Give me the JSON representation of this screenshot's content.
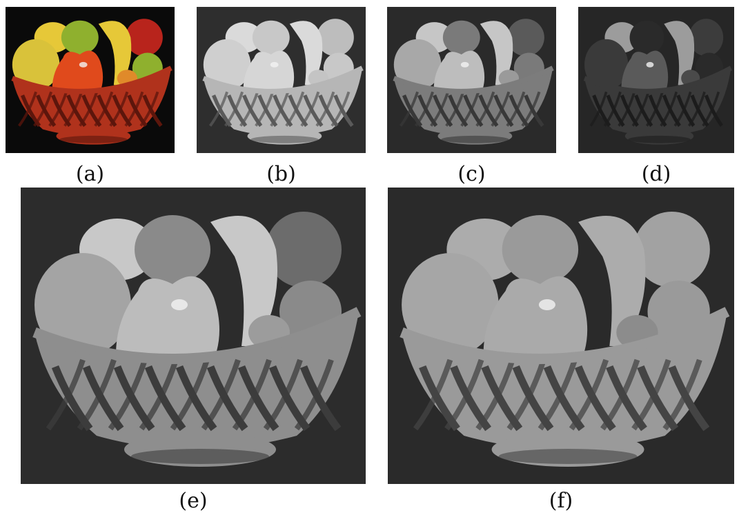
{
  "figure": {
    "panels": [
      {
        "id": "a",
        "caption": "(a)",
        "rendering": "color",
        "background": "#0a0a0a",
        "fruit_colors": [
          "#d9c23a",
          "#e04a1c",
          "#8fb02e",
          "#e6c838",
          "#b8241c",
          "#e08a2a"
        ],
        "basket_color": "#b0321c",
        "basket_shadow": "#5c160c"
      },
      {
        "id": "b",
        "caption": "(b)",
        "rendering": "grayscale",
        "background": "#2e2e2e",
        "fruit_colors": [
          "#cfcfcf",
          "#d6d6d6",
          "#c8c8c8",
          "#dadada",
          "#bdbdbd",
          "#c4c4c4"
        ],
        "basket_color": "#b6b6b6",
        "basket_shadow": "#5a5a5a"
      },
      {
        "id": "c",
        "caption": "(c)",
        "rendering": "grayscale",
        "background": "#2a2a2a",
        "fruit_colors": [
          "#a8a8a8",
          "#bdbdbd",
          "#7a7a7a",
          "#c6c6c6",
          "#5a5a5a",
          "#9a9a9a"
        ],
        "basket_color": "#7c7c7c",
        "basket_shadow": "#383838"
      },
      {
        "id": "d",
        "caption": "(d)",
        "rendering": "grayscale",
        "background": "#262626",
        "fruit_colors": [
          "#3a3a3a",
          "#5a5a5a",
          "#2a2a2a",
          "#9c9c9c",
          "#3c3c3c",
          "#4a4a4a"
        ],
        "basket_color": "#3a3a3a",
        "basket_shadow": "#1c1c1c"
      },
      {
        "id": "e",
        "caption": "(e)",
        "rendering": "grayscale",
        "background": "#2c2c2c",
        "fruit_colors": [
          "#a4a4a4",
          "#bcbcbc",
          "#8a8a8a",
          "#c8c8c8",
          "#6c6c6c",
          "#9c9c9c"
        ],
        "basket_color": "#8e8e8e",
        "basket_shadow": "#3c3c3c"
      },
      {
        "id": "f",
        "caption": "(f)",
        "rendering": "grayscale",
        "background": "#2a2a2a",
        "fruit_colors": [
          "#a6a6a6",
          "#aaaaaa",
          "#9a9a9a",
          "#acacac",
          "#a2a2a2",
          "#8c8c8c"
        ],
        "basket_color": "#9a9a9a",
        "basket_shadow": "#444444"
      }
    ]
  }
}
